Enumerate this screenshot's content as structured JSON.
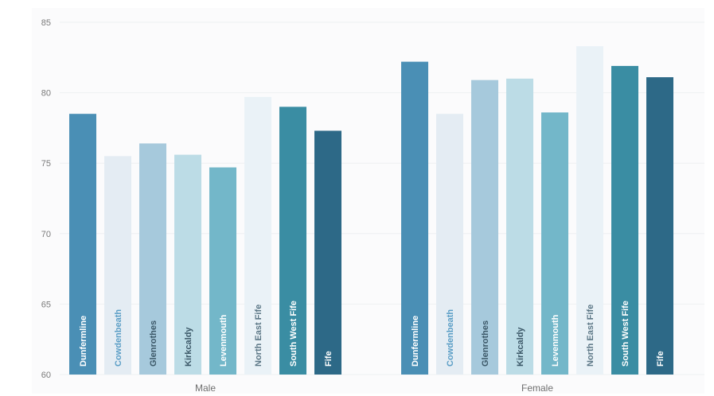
{
  "chart_data": {
    "type": "bar",
    "title": "",
    "xlabel": "",
    "ylabel": "",
    "ylim": [
      60,
      85
    ],
    "yticks": [
      60,
      65,
      70,
      75,
      80,
      85
    ],
    "grid": true,
    "legend": "none",
    "groups": [
      "Male",
      "Female"
    ],
    "categories": [
      "Dunfermline",
      "Cowdenbeath",
      "Glenrothes",
      "Kirkcaldy",
      "Levenmouth",
      "North East Fife",
      "South West Fife",
      "Fife"
    ],
    "colors": [
      "#4a8fb5",
      "#e4ecf3",
      "#a6c9dc",
      "#bcdce6",
      "#73b7c9",
      "#eaf2f7",
      "#3a8da3",
      "#2d6987"
    ],
    "label_colors": [
      "#ffffff",
      "#5b9ec6",
      "#3c5868",
      "#3c5868",
      "#ffffff",
      "#5d7887",
      "#ffffff",
      "#ffffff"
    ],
    "series": [
      {
        "name": "Male",
        "values": [
          78.5,
          75.5,
          76.4,
          75.6,
          74.7,
          79.7,
          79.0,
          77.3
        ]
      },
      {
        "name": "Female",
        "values": [
          82.2,
          78.5,
          80.9,
          81.0,
          78.6,
          83.3,
          81.9,
          81.1
        ]
      }
    ]
  }
}
